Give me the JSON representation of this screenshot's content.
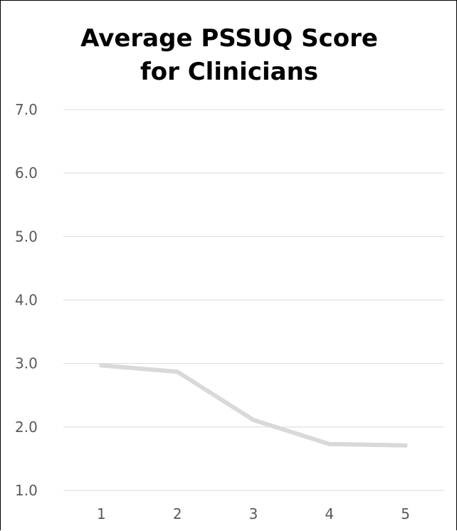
{
  "chart_data": {
    "type": "line",
    "title_lines": [
      "Average PSSUQ Score",
      "for Clinicians"
    ],
    "x": [
      1,
      2,
      3,
      4,
      5
    ],
    "x_tick_labels": [
      "1",
      "2",
      "3",
      "4",
      "5"
    ],
    "series": [
      {
        "values": [
          2.97,
          2.87,
          2.11,
          1.73,
          1.71
        ]
      }
    ],
    "ylim": [
      1.0,
      7.0
    ],
    "y_ticks": [
      1.0,
      2.0,
      3.0,
      4.0,
      5.0,
      6.0,
      7.0
    ],
    "y_tick_labels": [
      "1.0",
      "2.0",
      "3.0",
      "4.0",
      "5.0",
      "6.0",
      "7.0"
    ],
    "grid": "horizontal",
    "legend": "none",
    "colors": {
      "line": "#d9d9d9",
      "gridline": "#d9d9d9",
      "tick_text": "#595959",
      "title_text": "#000000"
    }
  }
}
